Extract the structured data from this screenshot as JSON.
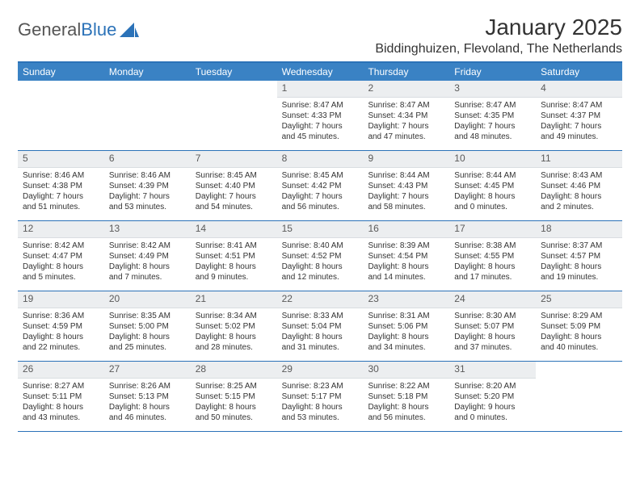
{
  "brand": {
    "part1": "General",
    "part2": "Blue"
  },
  "title": "January 2025",
  "location": "Biddinghuizen, Flevoland, The Netherlands",
  "colors": {
    "header_bar": "#3a82c4",
    "header_border": "#2b72b8",
    "daynum_bg": "#eceef0",
    "text": "#333333"
  },
  "weekdays": [
    "Sunday",
    "Monday",
    "Tuesday",
    "Wednesday",
    "Thursday",
    "Friday",
    "Saturday"
  ],
  "weeks": [
    [
      null,
      null,
      null,
      {
        "n": "1",
        "sr": "Sunrise: 8:47 AM",
        "ss": "Sunset: 4:33 PM",
        "d1": "Daylight: 7 hours",
        "d2": "and 45 minutes."
      },
      {
        "n": "2",
        "sr": "Sunrise: 8:47 AM",
        "ss": "Sunset: 4:34 PM",
        "d1": "Daylight: 7 hours",
        "d2": "and 47 minutes."
      },
      {
        "n": "3",
        "sr": "Sunrise: 8:47 AM",
        "ss": "Sunset: 4:35 PM",
        "d1": "Daylight: 7 hours",
        "d2": "and 48 minutes."
      },
      {
        "n": "4",
        "sr": "Sunrise: 8:47 AM",
        "ss": "Sunset: 4:37 PM",
        "d1": "Daylight: 7 hours",
        "d2": "and 49 minutes."
      }
    ],
    [
      {
        "n": "5",
        "sr": "Sunrise: 8:46 AM",
        "ss": "Sunset: 4:38 PM",
        "d1": "Daylight: 7 hours",
        "d2": "and 51 minutes."
      },
      {
        "n": "6",
        "sr": "Sunrise: 8:46 AM",
        "ss": "Sunset: 4:39 PM",
        "d1": "Daylight: 7 hours",
        "d2": "and 53 minutes."
      },
      {
        "n": "7",
        "sr": "Sunrise: 8:45 AM",
        "ss": "Sunset: 4:40 PM",
        "d1": "Daylight: 7 hours",
        "d2": "and 54 minutes."
      },
      {
        "n": "8",
        "sr": "Sunrise: 8:45 AM",
        "ss": "Sunset: 4:42 PM",
        "d1": "Daylight: 7 hours",
        "d2": "and 56 minutes."
      },
      {
        "n": "9",
        "sr": "Sunrise: 8:44 AM",
        "ss": "Sunset: 4:43 PM",
        "d1": "Daylight: 7 hours",
        "d2": "and 58 minutes."
      },
      {
        "n": "10",
        "sr": "Sunrise: 8:44 AM",
        "ss": "Sunset: 4:45 PM",
        "d1": "Daylight: 8 hours",
        "d2": "and 0 minutes."
      },
      {
        "n": "11",
        "sr": "Sunrise: 8:43 AM",
        "ss": "Sunset: 4:46 PM",
        "d1": "Daylight: 8 hours",
        "d2": "and 2 minutes."
      }
    ],
    [
      {
        "n": "12",
        "sr": "Sunrise: 8:42 AM",
        "ss": "Sunset: 4:47 PM",
        "d1": "Daylight: 8 hours",
        "d2": "and 5 minutes."
      },
      {
        "n": "13",
        "sr": "Sunrise: 8:42 AM",
        "ss": "Sunset: 4:49 PM",
        "d1": "Daylight: 8 hours",
        "d2": "and 7 minutes."
      },
      {
        "n": "14",
        "sr": "Sunrise: 8:41 AM",
        "ss": "Sunset: 4:51 PM",
        "d1": "Daylight: 8 hours",
        "d2": "and 9 minutes."
      },
      {
        "n": "15",
        "sr": "Sunrise: 8:40 AM",
        "ss": "Sunset: 4:52 PM",
        "d1": "Daylight: 8 hours",
        "d2": "and 12 minutes."
      },
      {
        "n": "16",
        "sr": "Sunrise: 8:39 AM",
        "ss": "Sunset: 4:54 PM",
        "d1": "Daylight: 8 hours",
        "d2": "and 14 minutes."
      },
      {
        "n": "17",
        "sr": "Sunrise: 8:38 AM",
        "ss": "Sunset: 4:55 PM",
        "d1": "Daylight: 8 hours",
        "d2": "and 17 minutes."
      },
      {
        "n": "18",
        "sr": "Sunrise: 8:37 AM",
        "ss": "Sunset: 4:57 PM",
        "d1": "Daylight: 8 hours",
        "d2": "and 19 minutes."
      }
    ],
    [
      {
        "n": "19",
        "sr": "Sunrise: 8:36 AM",
        "ss": "Sunset: 4:59 PM",
        "d1": "Daylight: 8 hours",
        "d2": "and 22 minutes."
      },
      {
        "n": "20",
        "sr": "Sunrise: 8:35 AM",
        "ss": "Sunset: 5:00 PM",
        "d1": "Daylight: 8 hours",
        "d2": "and 25 minutes."
      },
      {
        "n": "21",
        "sr": "Sunrise: 8:34 AM",
        "ss": "Sunset: 5:02 PM",
        "d1": "Daylight: 8 hours",
        "d2": "and 28 minutes."
      },
      {
        "n": "22",
        "sr": "Sunrise: 8:33 AM",
        "ss": "Sunset: 5:04 PM",
        "d1": "Daylight: 8 hours",
        "d2": "and 31 minutes."
      },
      {
        "n": "23",
        "sr": "Sunrise: 8:31 AM",
        "ss": "Sunset: 5:06 PM",
        "d1": "Daylight: 8 hours",
        "d2": "and 34 minutes."
      },
      {
        "n": "24",
        "sr": "Sunrise: 8:30 AM",
        "ss": "Sunset: 5:07 PM",
        "d1": "Daylight: 8 hours",
        "d2": "and 37 minutes."
      },
      {
        "n": "25",
        "sr": "Sunrise: 8:29 AM",
        "ss": "Sunset: 5:09 PM",
        "d1": "Daylight: 8 hours",
        "d2": "and 40 minutes."
      }
    ],
    [
      {
        "n": "26",
        "sr": "Sunrise: 8:27 AM",
        "ss": "Sunset: 5:11 PM",
        "d1": "Daylight: 8 hours",
        "d2": "and 43 minutes."
      },
      {
        "n": "27",
        "sr": "Sunrise: 8:26 AM",
        "ss": "Sunset: 5:13 PM",
        "d1": "Daylight: 8 hours",
        "d2": "and 46 minutes."
      },
      {
        "n": "28",
        "sr": "Sunrise: 8:25 AM",
        "ss": "Sunset: 5:15 PM",
        "d1": "Daylight: 8 hours",
        "d2": "and 50 minutes."
      },
      {
        "n": "29",
        "sr": "Sunrise: 8:23 AM",
        "ss": "Sunset: 5:17 PM",
        "d1": "Daylight: 8 hours",
        "d2": "and 53 minutes."
      },
      {
        "n": "30",
        "sr": "Sunrise: 8:22 AM",
        "ss": "Sunset: 5:18 PM",
        "d1": "Daylight: 8 hours",
        "d2": "and 56 minutes."
      },
      {
        "n": "31",
        "sr": "Sunrise: 8:20 AM",
        "ss": "Sunset: 5:20 PM",
        "d1": "Daylight: 9 hours",
        "d2": "and 0 minutes."
      },
      null
    ]
  ]
}
